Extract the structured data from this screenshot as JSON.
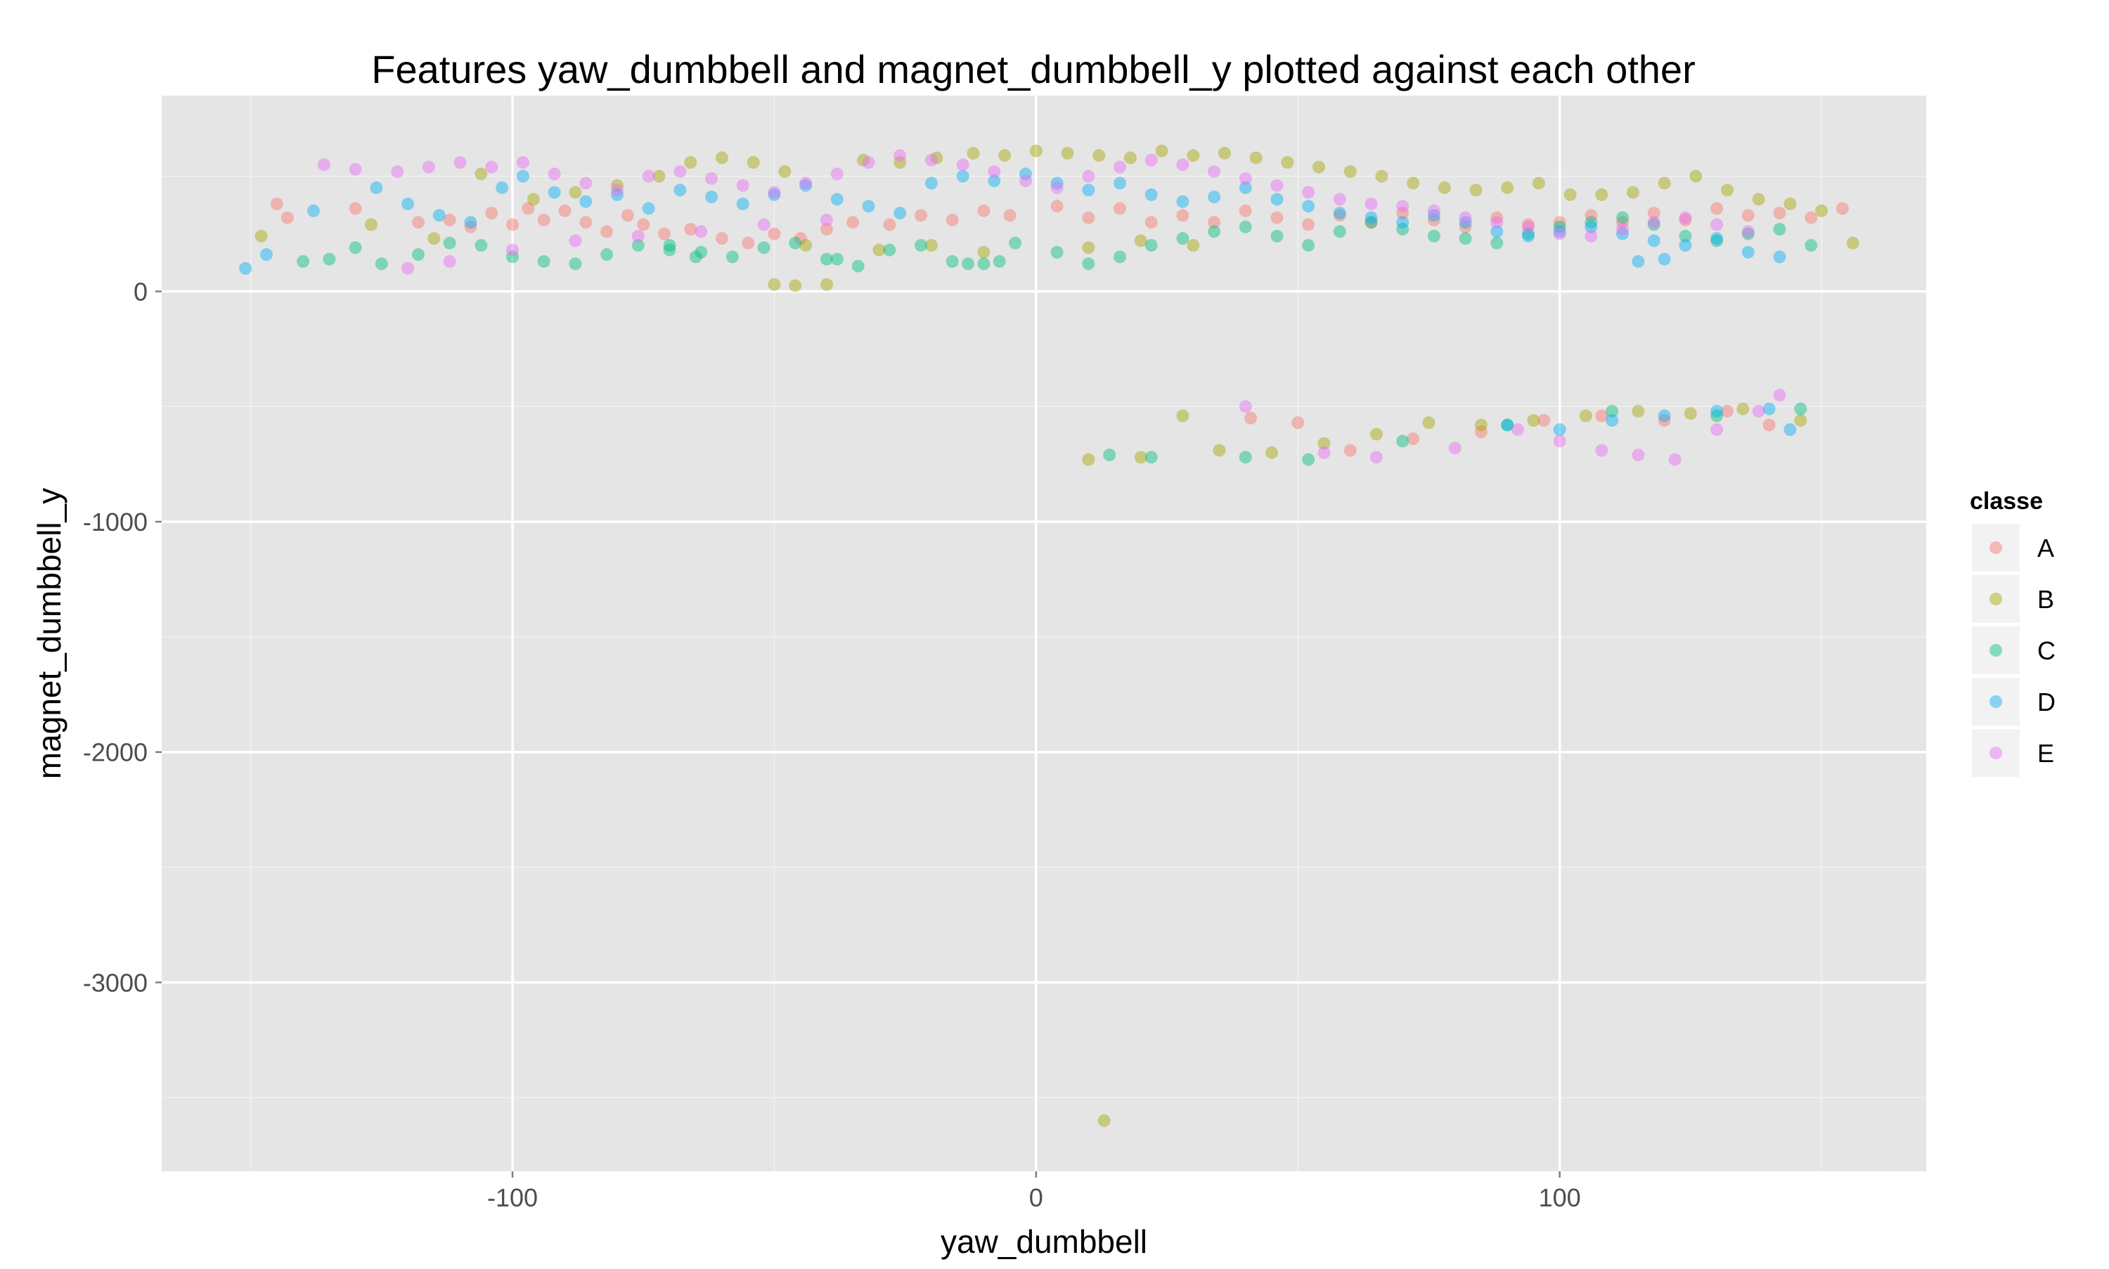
{
  "chart_data": {
    "type": "scatter",
    "title": "Features  yaw_dumbbell  and  magnet_dumbbell_y  plotted against each other",
    "xlabel": "yaw_dumbbell",
    "ylabel": "magnet_dumbbell_y",
    "xlim": [
      -167,
      170
    ],
    "ylim": [
      -3820,
      850
    ],
    "x_ticks": [
      -100,
      0,
      100
    ],
    "x_tick_labels": [
      "-100",
      "0",
      "100"
    ],
    "y_ticks": [
      0,
      -1000,
      -2000,
      -3000
    ],
    "y_tick_labels": [
      "0",
      "-1000",
      "-2000",
      "-3000"
    ],
    "grid": true,
    "legend": {
      "title": "classe",
      "position": "right"
    },
    "series": [
      {
        "name": "A",
        "color": "#F8766D",
        "points": [
          [
            -145,
            380
          ],
          [
            -143,
            320
          ],
          [
            -130,
            360
          ],
          [
            -118,
            300
          ],
          [
            -112,
            310
          ],
          [
            -108,
            280
          ],
          [
            -104,
            340
          ],
          [
            -100,
            290
          ],
          [
            -97,
            360
          ],
          [
            -94,
            310
          ],
          [
            -90,
            350
          ],
          [
            -86,
            300
          ],
          [
            -82,
            260
          ],
          [
            -78,
            330
          ],
          [
            -75,
            290
          ],
          [
            -71,
            250
          ],
          [
            -66,
            270
          ],
          [
            -60,
            230
          ],
          [
            -55,
            210
          ],
          [
            -50,
            250
          ],
          [
            -45,
            230
          ],
          [
            -40,
            270
          ],
          [
            -35,
            300
          ],
          [
            -28,
            290
          ],
          [
            -22,
            330
          ],
          [
            -16,
            310
          ],
          [
            -10,
            350
          ],
          [
            -5,
            330
          ],
          [
            4,
            370
          ],
          [
            10,
            320
          ],
          [
            16,
            360
          ],
          [
            22,
            300
          ],
          [
            28,
            330
          ],
          [
            34,
            300
          ],
          [
            40,
            350
          ],
          [
            46,
            320
          ],
          [
            52,
            290
          ],
          [
            58,
            330
          ],
          [
            64,
            300
          ],
          [
            70,
            340
          ],
          [
            76,
            310
          ],
          [
            82,
            280
          ],
          [
            88,
            320
          ],
          [
            94,
            290
          ],
          [
            100,
            300
          ],
          [
            106,
            330
          ],
          [
            112,
            300
          ],
          [
            118,
            340
          ],
          [
            124,
            310
          ],
          [
            130,
            360
          ],
          [
            136,
            330
          ],
          [
            142,
            340
          ],
          [
            148,
            320
          ],
          [
            154,
            360
          ],
          [
            41,
            -550
          ],
          [
            50,
            -570
          ],
          [
            60,
            -690
          ],
          [
            72,
            -640
          ],
          [
            85,
            -610
          ],
          [
            97,
            -560
          ],
          [
            108,
            -540
          ],
          [
            120,
            -560
          ],
          [
            132,
            -520
          ],
          [
            140,
            -580
          ]
        ]
      },
      {
        "name": "B",
        "color": "#A3A500",
        "points": [
          [
            -148,
            240
          ],
          [
            -127,
            290
          ],
          [
            -115,
            230
          ],
          [
            -106,
            510
          ],
          [
            -96,
            400
          ],
          [
            -88,
            430
          ],
          [
            -80,
            460
          ],
          [
            -72,
            500
          ],
          [
            -66,
            560
          ],
          [
            -60,
            580
          ],
          [
            -54,
            560
          ],
          [
            -48,
            520
          ],
          [
            -44,
            200
          ],
          [
            -50,
            30
          ],
          [
            -46,
            25
          ],
          [
            -40,
            30
          ],
          [
            -33,
            570
          ],
          [
            -26,
            560
          ],
          [
            -19,
            580
          ],
          [
            -12,
            600
          ],
          [
            -6,
            590
          ],
          [
            0,
            610
          ],
          [
            6,
            600
          ],
          [
            12,
            590
          ],
          [
            18,
            580
          ],
          [
            24,
            610
          ],
          [
            30,
            590
          ],
          [
            36,
            600
          ],
          [
            42,
            580
          ],
          [
            48,
            560
          ],
          [
            54,
            540
          ],
          [
            60,
            520
          ],
          [
            66,
            500
          ],
          [
            72,
            470
          ],
          [
            78,
            450
          ],
          [
            84,
            440
          ],
          [
            90,
            450
          ],
          [
            96,
            470
          ],
          [
            102,
            420
          ],
          [
            108,
            420
          ],
          [
            114,
            430
          ],
          [
            120,
            470
          ],
          [
            126,
            500
          ],
          [
            132,
            440
          ],
          [
            138,
            400
          ],
          [
            144,
            380
          ],
          [
            150,
            350
          ],
          [
            156,
            210
          ],
          [
            -30,
            180
          ],
          [
            -20,
            200
          ],
          [
            -10,
            170
          ],
          [
            10,
            190
          ],
          [
            20,
            220
          ],
          [
            30,
            200
          ],
          [
            10,
            -730
          ],
          [
            20,
            -720
          ],
          [
            28,
            -540
          ],
          [
            35,
            -690
          ],
          [
            45,
            -700
          ],
          [
            55,
            -660
          ],
          [
            65,
            -620
          ],
          [
            75,
            -570
          ],
          [
            85,
            -580
          ],
          [
            95,
            -560
          ],
          [
            105,
            -540
          ],
          [
            115,
            -520
          ],
          [
            125,
            -530
          ],
          [
            135,
            -510
          ],
          [
            146,
            -560
          ],
          [
            13,
            -3600
          ]
        ]
      },
      {
        "name": "C",
        "color": "#00BF7D",
        "points": [
          [
            -140,
            130
          ],
          [
            -135,
            140
          ],
          [
            -130,
            190
          ],
          [
            -125,
            120
          ],
          [
            -118,
            160
          ],
          [
            -112,
            210
          ],
          [
            -106,
            200
          ],
          [
            -100,
            150
          ],
          [
            -94,
            130
          ],
          [
            -88,
            120
          ],
          [
            -82,
            160
          ],
          [
            -76,
            200
          ],
          [
            -70,
            180
          ],
          [
            -64,
            170
          ],
          [
            -58,
            150
          ],
          [
            -52,
            190
          ],
          [
            -46,
            210
          ],
          [
            -40,
            140
          ],
          [
            -34,
            110
          ],
          [
            -28,
            180
          ],
          [
            -22,
            200
          ],
          [
            -16,
            130
          ],
          [
            -10,
            120
          ],
          [
            -4,
            210
          ],
          [
            4,
            170
          ],
          [
            10,
            120
          ],
          [
            16,
            150
          ],
          [
            22,
            200
          ],
          [
            28,
            230
          ],
          [
            34,
            260
          ],
          [
            40,
            280
          ],
          [
            46,
            240
          ],
          [
            52,
            200
          ],
          [
            58,
            260
          ],
          [
            64,
            300
          ],
          [
            70,
            270
          ],
          [
            76,
            240
          ],
          [
            82,
            230
          ],
          [
            88,
            210
          ],
          [
            94,
            250
          ],
          [
            100,
            280
          ],
          [
            106,
            300
          ],
          [
            112,
            320
          ],
          [
            118,
            290
          ],
          [
            124,
            240
          ],
          [
            130,
            220
          ],
          [
            136,
            250
          ],
          [
            142,
            270
          ],
          [
            148,
            200
          ],
          [
            -70,
            200
          ],
          [
            -65,
            150
          ],
          [
            -38,
            140
          ],
          [
            -13,
            120
          ],
          [
            -7,
            130
          ],
          [
            14,
            -710
          ],
          [
            22,
            -720
          ],
          [
            40,
            -720
          ],
          [
            52,
            -730
          ],
          [
            70,
            -650
          ],
          [
            90,
            -580
          ],
          [
            110,
            -520
          ],
          [
            130,
            -540
          ],
          [
            146,
            -510
          ]
        ]
      },
      {
        "name": "D",
        "color": "#00B0F6",
        "points": [
          [
            -151,
            100
          ],
          [
            -147,
            160
          ],
          [
            -138,
            350
          ],
          [
            -126,
            450
          ],
          [
            -120,
            380
          ],
          [
            -114,
            330
          ],
          [
            -108,
            300
          ],
          [
            -102,
            450
          ],
          [
            -98,
            500
          ],
          [
            -92,
            430
          ],
          [
            -86,
            390
          ],
          [
            -80,
            420
          ],
          [
            -74,
            360
          ],
          [
            -68,
            440
          ],
          [
            -62,
            410
          ],
          [
            -56,
            380
          ],
          [
            -50,
            420
          ],
          [
            -44,
            460
          ],
          [
            -38,
            400
          ],
          [
            -32,
            370
          ],
          [
            -26,
            340
          ],
          [
            -20,
            470
          ],
          [
            -14,
            500
          ],
          [
            -8,
            480
          ],
          [
            -2,
            510
          ],
          [
            4,
            470
          ],
          [
            10,
            440
          ],
          [
            16,
            470
          ],
          [
            22,
            420
          ],
          [
            28,
            390
          ],
          [
            34,
            410
          ],
          [
            40,
            450
          ],
          [
            46,
            400
          ],
          [
            52,
            370
          ],
          [
            58,
            340
          ],
          [
            64,
            320
          ],
          [
            70,
            300
          ],
          [
            76,
            330
          ],
          [
            82,
            300
          ],
          [
            88,
            260
          ],
          [
            94,
            240
          ],
          [
            100,
            260
          ],
          [
            106,
            280
          ],
          [
            112,
            250
          ],
          [
            118,
            220
          ],
          [
            124,
            200
          ],
          [
            130,
            230
          ],
          [
            136,
            170
          ],
          [
            142,
            150
          ],
          [
            115,
            130
          ],
          [
            120,
            140
          ],
          [
            90,
            -580
          ],
          [
            100,
            -600
          ],
          [
            110,
            -560
          ],
          [
            120,
            -540
          ],
          [
            130,
            -520
          ],
          [
            140,
            -510
          ],
          [
            144,
            -600
          ]
        ]
      },
      {
        "name": "E",
        "color": "#E76BF3",
        "points": [
          [
            -136,
            550
          ],
          [
            -130,
            530
          ],
          [
            -122,
            520
          ],
          [
            -116,
            540
          ],
          [
            -110,
            560
          ],
          [
            -104,
            540
          ],
          [
            -98,
            560
          ],
          [
            -92,
            510
          ],
          [
            -86,
            470
          ],
          [
            -80,
            440
          ],
          [
            -74,
            500
          ],
          [
            -68,
            520
          ],
          [
            -62,
            490
          ],
          [
            -56,
            460
          ],
          [
            -50,
            430
          ],
          [
            -44,
            470
          ],
          [
            -38,
            510
          ],
          [
            -32,
            560
          ],
          [
            -26,
            590
          ],
          [
            -20,
            570
          ],
          [
            -14,
            550
          ],
          [
            -8,
            520
          ],
          [
            -2,
            480
          ],
          [
            4,
            450
          ],
          [
            10,
            500
          ],
          [
            16,
            540
          ],
          [
            22,
            570
          ],
          [
            28,
            550
          ],
          [
            34,
            520
          ],
          [
            40,
            490
          ],
          [
            46,
            460
          ],
          [
            52,
            430
          ],
          [
            58,
            400
          ],
          [
            64,
            380
          ],
          [
            70,
            370
          ],
          [
            76,
            350
          ],
          [
            82,
            320
          ],
          [
            88,
            300
          ],
          [
            94,
            280
          ],
          [
            100,
            250
          ],
          [
            106,
            240
          ],
          [
            112,
            270
          ],
          [
            118,
            300
          ],
          [
            124,
            320
          ],
          [
            130,
            290
          ],
          [
            136,
            260
          ],
          [
            -120,
            100
          ],
          [
            -112,
            130
          ],
          [
            -100,
            180
          ],
          [
            -88,
            220
          ],
          [
            -76,
            240
          ],
          [
            -64,
            260
          ],
          [
            -52,
            290
          ],
          [
            -40,
            310
          ],
          [
            40,
            -500
          ],
          [
            55,
            -700
          ],
          [
            65,
            -720
          ],
          [
            80,
            -680
          ],
          [
            92,
            -600
          ],
          [
            100,
            -650
          ],
          [
            108,
            -690
          ],
          [
            115,
            -710
          ],
          [
            122,
            -730
          ],
          [
            130,
            -600
          ],
          [
            138,
            -520
          ],
          [
            142,
            -450
          ]
        ]
      }
    ]
  }
}
